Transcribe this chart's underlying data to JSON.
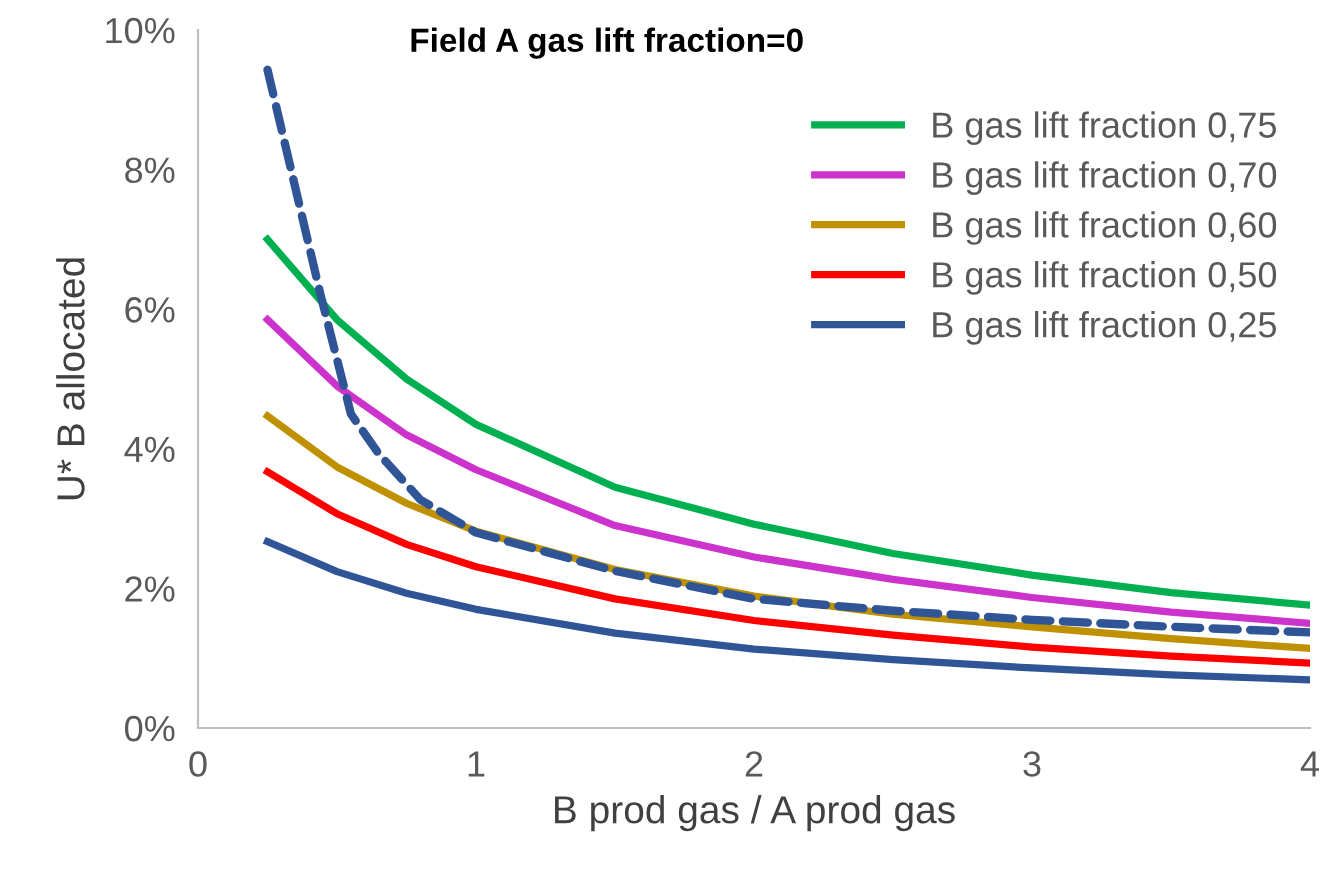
{
  "chart_data": {
    "type": "line",
    "title": "Field A gas lift fraction=0",
    "xlabel": "B prod gas / A prod gas",
    "ylabel": "U* B allocated",
    "x": [
      0.25,
      0.5,
      0.75,
      1,
      1.5,
      2,
      2.5,
      3,
      3.5,
      4
    ],
    "series": [
      {
        "name": "B gas lift fraction 0,75",
        "color": "#00b050",
        "values": [
          7.0,
          5.85,
          5.0,
          4.35,
          3.45,
          2.92,
          2.5,
          2.19,
          1.94,
          1.76
        ]
      },
      {
        "name": "B gas lift fraction 0,70",
        "color": "#cc33cc",
        "values": [
          5.85,
          4.9,
          4.2,
          3.7,
          2.9,
          2.45,
          2.13,
          1.87,
          1.66,
          1.5
        ]
      },
      {
        "name": "B gas lift fraction 0,60",
        "color": "#bf9000",
        "values": [
          4.47,
          3.74,
          3.22,
          2.82,
          2.27,
          1.89,
          1.63,
          1.45,
          1.28,
          1.14
        ]
      },
      {
        "name": "B gas lift fraction 0,50",
        "color": "#ff0000",
        "values": [
          3.67,
          3.07,
          2.63,
          2.31,
          1.85,
          1.54,
          1.33,
          1.16,
          1.03,
          0.93
        ]
      },
      {
        "name": "B gas lift fraction 0,25",
        "color": "#2f5597",
        "values": [
          2.67,
          2.24,
          1.93,
          1.7,
          1.36,
          1.13,
          0.98,
          0.86,
          0.76,
          0.69
        ]
      },
      {
        "color": "#2f5597",
        "line_style": "dashed",
        "x": [
          0.25,
          0.44,
          0.55,
          0.65,
          0.8,
          1,
          1.5,
          2,
          2.5,
          3,
          3.5,
          4
        ],
        "values": [
          9.43,
          6.22,
          4.5,
          3.93,
          3.27,
          2.8,
          2.25,
          1.85,
          1.68,
          1.55,
          1.45,
          1.37
        ]
      }
    ],
    "xlim": [
      0,
      4
    ],
    "xticks": [
      0,
      1,
      2,
      3,
      4
    ],
    "ylim": [
      0,
      10
    ],
    "yticks": [
      {
        "value": 0,
        "label": "0%"
      },
      {
        "value": 2,
        "label": "2%"
      },
      {
        "value": 4,
        "label": "4%"
      },
      {
        "value": 6,
        "label": "6%"
      },
      {
        "value": 8,
        "label": "8%"
      },
      {
        "value": 10,
        "label": "10%"
      }
    ],
    "grid": false,
    "legend": "top right",
    "marker": "none",
    "line_style": "solid"
  }
}
